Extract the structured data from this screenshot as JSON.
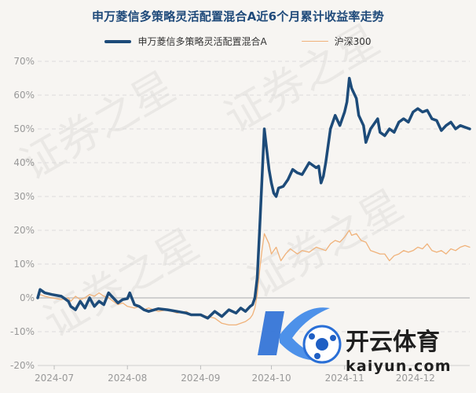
{
  "colors": {
    "fund": "#1d4b79",
    "index": "#f0b27a",
    "grid": "#dcdcdc",
    "axis_text": "#999999",
    "zero_line": "#d0d0d0"
  },
  "chart_data": {
    "type": "line",
    "title": "申万菱信多策略灵活配置混合A近6个月累计收益率走势",
    "ylim": [
      -20,
      70
    ],
    "yticks": [
      -20,
      -10,
      0,
      10,
      20,
      30,
      40,
      50,
      60,
      70
    ],
    "ytick_labels": [
      "-20%",
      "-10%",
      "0%",
      "10%",
      "20%",
      "30%",
      "40%",
      "50%",
      "60%",
      "70%"
    ],
    "xlim": [
      "2024-06-24",
      "2024-12-24"
    ],
    "xticks": [
      {
        "date": "2024-07-01",
        "label": "2024-07"
      },
      {
        "date": "2024-08-01",
        "label": "2024-08"
      },
      {
        "date": "2024-09-01",
        "label": "2024-09"
      },
      {
        "date": "2024-10-01",
        "label": "2024-10"
      },
      {
        "date": "2024-11-01",
        "label": "2024-11"
      },
      {
        "date": "2024-12-01",
        "label": "2024-12"
      }
    ],
    "grid": true,
    "legend_position": "top",
    "series": [
      {
        "name": "申万菱信多策略灵活配置混合A",
        "color": "#1d4b79",
        "points": [
          [
            "2024-06-24",
            0
          ],
          [
            "2024-06-25",
            2.5
          ],
          [
            "2024-06-27",
            1.5
          ],
          [
            "2024-06-30",
            1.0
          ],
          [
            "2024-07-04",
            0.5
          ],
          [
            "2024-07-07",
            -1.0
          ],
          [
            "2024-07-08",
            -2.5
          ],
          [
            "2024-07-10",
            -3.5
          ],
          [
            "2024-07-12",
            -1.0
          ],
          [
            "2024-07-14",
            -3.0
          ],
          [
            "2024-07-16",
            0.0
          ],
          [
            "2024-07-18",
            -2.5
          ],
          [
            "2024-07-20",
            -1.0
          ],
          [
            "2024-07-22",
            -2.0
          ],
          [
            "2024-07-24",
            1.5
          ],
          [
            "2024-07-26",
            0.0
          ],
          [
            "2024-07-28",
            -1.5
          ],
          [
            "2024-07-30",
            -0.5
          ],
          [
            "2024-08-01",
            -0.2
          ],
          [
            "2024-08-02",
            1.5
          ],
          [
            "2024-08-04",
            -2.0
          ],
          [
            "2024-08-06",
            -2.5
          ],
          [
            "2024-08-08",
            -3.5
          ],
          [
            "2024-08-10",
            -4.0
          ],
          [
            "2024-08-14",
            -3.2
          ],
          [
            "2024-08-18",
            -3.5
          ],
          [
            "2024-08-22",
            -4.0
          ],
          [
            "2024-08-26",
            -4.5
          ],
          [
            "2024-08-28",
            -5.0
          ],
          [
            "2024-09-01",
            -5.0
          ],
          [
            "2024-09-04",
            -6.0
          ],
          [
            "2024-09-07",
            -4.0
          ],
          [
            "2024-09-10",
            -5.5
          ],
          [
            "2024-09-13",
            -3.5
          ],
          [
            "2024-09-16",
            -4.5
          ],
          [
            "2024-09-18",
            -3.0
          ],
          [
            "2024-09-20",
            -4.0
          ],
          [
            "2024-09-22",
            -2.5
          ],
          [
            "2024-09-23",
            -2.0
          ],
          [
            "2024-09-24",
            0.0
          ],
          [
            "2024-09-25",
            6.0
          ],
          [
            "2024-09-26",
            20.0
          ],
          [
            "2024-09-27",
            35.0
          ],
          [
            "2024-09-28",
            50.0
          ],
          [
            "2024-09-30",
            38.0
          ],
          [
            "2024-10-01",
            34.0
          ],
          [
            "2024-10-02",
            31.0
          ],
          [
            "2024-10-03",
            30.0
          ],
          [
            "2024-10-04",
            32.5
          ],
          [
            "2024-10-06",
            33.0
          ],
          [
            "2024-10-08",
            35.0
          ],
          [
            "2024-10-10",
            38.0
          ],
          [
            "2024-10-12",
            37.0
          ],
          [
            "2024-10-14",
            36.5
          ],
          [
            "2024-10-17",
            40.0
          ],
          [
            "2024-10-20",
            38.5
          ],
          [
            "2024-10-21",
            39.0
          ],
          [
            "2024-10-22",
            34.0
          ],
          [
            "2024-10-23",
            36.0
          ],
          [
            "2024-10-24",
            40.0
          ],
          [
            "2024-10-26",
            50.0
          ],
          [
            "2024-10-28",
            54.0
          ],
          [
            "2024-10-30",
            51.0
          ],
          [
            "2024-11-01",
            55.0
          ],
          [
            "2024-11-02",
            58.0
          ],
          [
            "2024-11-03",
            65.0
          ],
          [
            "2024-11-04",
            62.0
          ],
          [
            "2024-11-06",
            59.0
          ],
          [
            "2024-11-07",
            54.0
          ],
          [
            "2024-11-09",
            51.0
          ],
          [
            "2024-11-10",
            46.0
          ],
          [
            "2024-11-12",
            50.0
          ],
          [
            "2024-11-15",
            53.0
          ],
          [
            "2024-11-16",
            49.0
          ],
          [
            "2024-11-18",
            48.0
          ],
          [
            "2024-11-20",
            50.0
          ],
          [
            "2024-11-22",
            49.0
          ],
          [
            "2024-11-24",
            52.0
          ],
          [
            "2024-11-26",
            53.0
          ],
          [
            "2024-11-28",
            52.0
          ],
          [
            "2024-11-30",
            55.0
          ],
          [
            "2024-12-02",
            56.0
          ],
          [
            "2024-12-04",
            55.0
          ],
          [
            "2024-12-06",
            55.5
          ],
          [
            "2024-12-08",
            53.0
          ],
          [
            "2024-12-10",
            52.5
          ],
          [
            "2024-12-12",
            49.5
          ],
          [
            "2024-12-14",
            51.0
          ],
          [
            "2024-12-16",
            52.0
          ],
          [
            "2024-12-18",
            50.0
          ],
          [
            "2024-12-20",
            51.0
          ],
          [
            "2024-12-22",
            50.5
          ],
          [
            "2024-12-24",
            50.0
          ]
        ]
      },
      {
        "name": "沪深300",
        "color": "#f0b27a",
        "points": [
          [
            "2024-06-24",
            0
          ],
          [
            "2024-06-25",
            1.0
          ],
          [
            "2024-06-27",
            0.5
          ],
          [
            "2024-06-30",
            0.0
          ],
          [
            "2024-07-04",
            -0.5
          ],
          [
            "2024-07-07",
            0.0
          ],
          [
            "2024-07-08",
            -1.0
          ],
          [
            "2024-07-10",
            0.5
          ],
          [
            "2024-07-12",
            -0.5
          ],
          [
            "2024-07-14",
            0.0
          ],
          [
            "2024-07-16",
            1.0
          ],
          [
            "2024-07-18",
            0.5
          ],
          [
            "2024-07-20",
            1.5
          ],
          [
            "2024-07-22",
            0.5
          ],
          [
            "2024-07-24",
            0.0
          ],
          [
            "2024-07-26",
            -1.0
          ],
          [
            "2024-07-28",
            -2.0
          ],
          [
            "2024-07-30",
            -1.5
          ],
          [
            "2024-08-01",
            -2.5
          ],
          [
            "2024-08-04",
            -3.0
          ],
          [
            "2024-08-06",
            -2.5
          ],
          [
            "2024-08-08",
            -3.5
          ],
          [
            "2024-08-10",
            -3.0
          ],
          [
            "2024-08-14",
            -4.0
          ],
          [
            "2024-08-18",
            -3.5
          ],
          [
            "2024-08-22",
            -4.5
          ],
          [
            "2024-08-26",
            -4.0
          ],
          [
            "2024-08-28",
            -5.0
          ],
          [
            "2024-09-01",
            -5.0
          ],
          [
            "2024-09-04",
            -5.5
          ],
          [
            "2024-09-07",
            -6.0
          ],
          [
            "2024-09-10",
            -7.5
          ],
          [
            "2024-09-13",
            -8.0
          ],
          [
            "2024-09-16",
            -8.0
          ],
          [
            "2024-09-18",
            -7.5
          ],
          [
            "2024-09-20",
            -7.0
          ],
          [
            "2024-09-22",
            -6.0
          ],
          [
            "2024-09-23",
            -5.0
          ],
          [
            "2024-09-24",
            -3.0
          ],
          [
            "2024-09-25",
            1.0
          ],
          [
            "2024-09-26",
            8.0
          ],
          [
            "2024-09-27",
            14.0
          ],
          [
            "2024-09-28",
            19.0
          ],
          [
            "2024-09-30",
            16.0
          ],
          [
            "2024-10-01",
            13.0
          ],
          [
            "2024-10-03",
            15.0
          ],
          [
            "2024-10-05",
            11.0
          ],
          [
            "2024-10-07",
            13.0
          ],
          [
            "2024-10-09",
            14.5
          ],
          [
            "2024-10-12",
            13.0
          ],
          [
            "2024-10-14",
            14.0
          ],
          [
            "2024-10-17",
            13.5
          ],
          [
            "2024-10-20",
            15.0
          ],
          [
            "2024-10-22",
            14.5
          ],
          [
            "2024-10-24",
            14.0
          ],
          [
            "2024-10-26",
            16.0
          ],
          [
            "2024-10-28",
            17.0
          ],
          [
            "2024-10-30",
            16.5
          ],
          [
            "2024-11-01",
            18.0
          ],
          [
            "2024-11-03",
            20.0
          ],
          [
            "2024-11-04",
            18.5
          ],
          [
            "2024-11-06",
            19.0
          ],
          [
            "2024-11-08",
            17.0
          ],
          [
            "2024-11-10",
            16.5
          ],
          [
            "2024-11-12",
            14.0
          ],
          [
            "2024-11-14",
            13.5
          ],
          [
            "2024-11-16",
            13.0
          ],
          [
            "2024-11-18",
            13.0
          ],
          [
            "2024-11-20",
            11.0
          ],
          [
            "2024-11-22",
            12.5
          ],
          [
            "2024-11-24",
            13.0
          ],
          [
            "2024-11-26",
            14.0
          ],
          [
            "2024-11-28",
            13.5
          ],
          [
            "2024-11-30",
            14.0
          ],
          [
            "2024-12-02",
            15.0
          ],
          [
            "2024-12-04",
            14.5
          ],
          [
            "2024-12-06",
            16.0
          ],
          [
            "2024-12-08",
            14.0
          ],
          [
            "2024-12-10",
            13.5
          ],
          [
            "2024-12-12",
            14.0
          ],
          [
            "2024-12-14",
            13.0
          ],
          [
            "2024-12-16",
            14.5
          ],
          [
            "2024-12-18",
            14.0
          ],
          [
            "2024-12-20",
            15.0
          ],
          [
            "2024-12-22",
            15.5
          ],
          [
            "2024-12-24",
            15.0
          ]
        ]
      }
    ]
  },
  "watermark": {
    "text": "证券之星",
    "brand_name": "开云体育",
    "brand_url": "kaiyun.com"
  }
}
